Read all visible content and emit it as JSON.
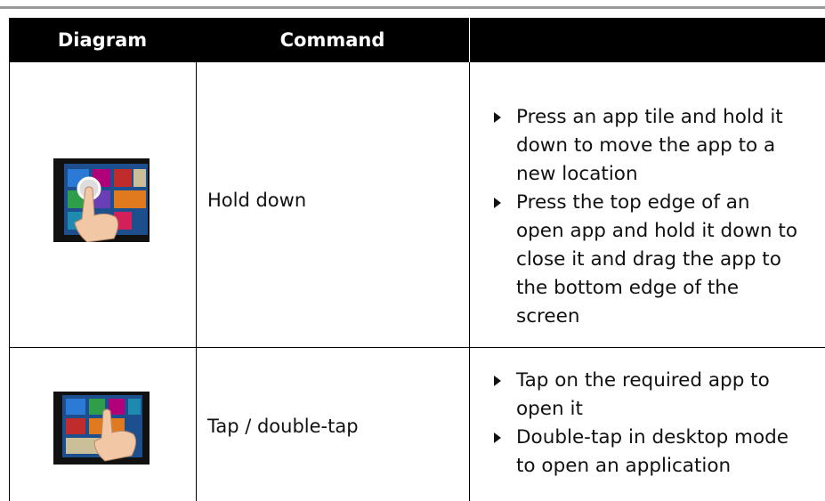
{
  "table": {
    "header": [
      "Diagram",
      "Command"
    ],
    "rows": [
      {
        "command": "Hold down",
        "bullets": [
          "Press an app tile and hold it down to move the app to a new location",
          "Press the top edge of an open app and hold it down to close it and drag the app to the bottom edge of the screen"
        ]
      },
      {
        "command": "Tap / double-tap",
        "bullets": [
          "Tap on the required app to open it",
          "Double-tap in desktop mode to open an application"
        ]
      }
    ]
  }
}
